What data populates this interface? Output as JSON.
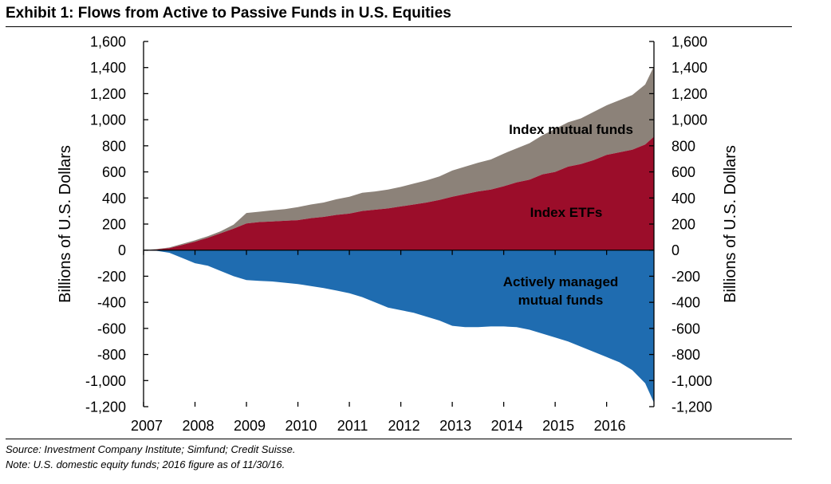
{
  "title": "Exhibit 1: Flows from Active to Passive Funds in U.S. Equities",
  "footnotes": {
    "source": "Source: Investment Company Institute; Simfund; Credit Suisse.",
    "note": "Note: U.S. domestic equity funds; 2016 figure as of 11/30/16."
  },
  "chart_data": {
    "type": "area",
    "title": "Exhibit 1: Flows from Active to Passive Funds in U.S. Equities",
    "ylabel_left": "Billions of U.S. Dollars",
    "ylabel_right": "Billions of U.S. Dollars",
    "xlabel": "",
    "xlim": [
      2007.0,
      2016.92
    ],
    "ylim": [
      -1200,
      1600
    ],
    "y_ticks": [
      1600,
      1400,
      1200,
      1000,
      800,
      600,
      400,
      200,
      0,
      -200,
      -400,
      -600,
      -800,
      -1000,
      -1200
    ],
    "y_tick_labels": [
      "1,600",
      "1,400",
      "1,200",
      "1,000",
      "800",
      "600",
      "400",
      "200",
      "0",
      "-200",
      "-400",
      "-600",
      "-800",
      "-1,000",
      "-1,200"
    ],
    "x_ticks": [
      2007,
      2008,
      2009,
      2010,
      2011,
      2012,
      2013,
      2014,
      2015,
      2016
    ],
    "x_tick_labels": [
      "2007",
      "2008",
      "2009",
      "2010",
      "2011",
      "2012",
      "2013",
      "2014",
      "2015",
      "2016"
    ],
    "grid": false,
    "x": [
      2007.0,
      2007.25,
      2007.5,
      2007.75,
      2008.0,
      2008.25,
      2008.5,
      2008.75,
      2009.0,
      2009.25,
      2009.5,
      2009.75,
      2010.0,
      2010.25,
      2010.5,
      2010.75,
      2011.0,
      2011.25,
      2011.5,
      2011.75,
      2012.0,
      2012.25,
      2012.5,
      2012.75,
      2013.0,
      2013.25,
      2013.5,
      2013.75,
      2014.0,
      2014.25,
      2014.5,
      2014.75,
      2015.0,
      2015.25,
      2015.5,
      2015.75,
      2016.0,
      2016.25,
      2016.5,
      2016.75,
      2016.92
    ],
    "series": [
      {
        "name": "Index ETFs",
        "color": "#9b0d2a",
        "values": [
          0,
          5,
          15,
          40,
          65,
          95,
          130,
          165,
          205,
          215,
          220,
          225,
          230,
          245,
          255,
          270,
          280,
          300,
          310,
          320,
          335,
          350,
          365,
          385,
          410,
          430,
          450,
          465,
          490,
          520,
          540,
          580,
          600,
          640,
          660,
          690,
          730,
          750,
          770,
          810,
          870
        ]
      },
      {
        "name": "Index mutual funds",
        "color": "#8c8279",
        "values": [
          0,
          3,
          5,
          8,
          10,
          12,
          15,
          30,
          80,
          80,
          85,
          90,
          100,
          105,
          110,
          120,
          130,
          140,
          140,
          145,
          150,
          160,
          170,
          180,
          200,
          210,
          220,
          230,
          250,
          260,
          280,
          300,
          330,
          340,
          350,
          370,
          380,
          400,
          420,
          460,
          540
        ]
      },
      {
        "name": "Actively managed mutual funds",
        "color": "#1f6cb0",
        "values": [
          0,
          -5,
          -20,
          -60,
          -100,
          -120,
          -160,
          -200,
          -230,
          -235,
          -240,
          -250,
          -260,
          -275,
          -290,
          -310,
          -330,
          -360,
          -400,
          -440,
          -460,
          -480,
          -510,
          -540,
          -580,
          -590,
          -590,
          -585,
          -585,
          -590,
          -610,
          -640,
          -670,
          -700,
          -740,
          -780,
          -820,
          -860,
          -920,
          -1020,
          -1170
        ]
      }
    ],
    "annotations": [
      "Index mutual funds",
      "Index ETFs",
      "Actively managed mutual funds"
    ]
  }
}
